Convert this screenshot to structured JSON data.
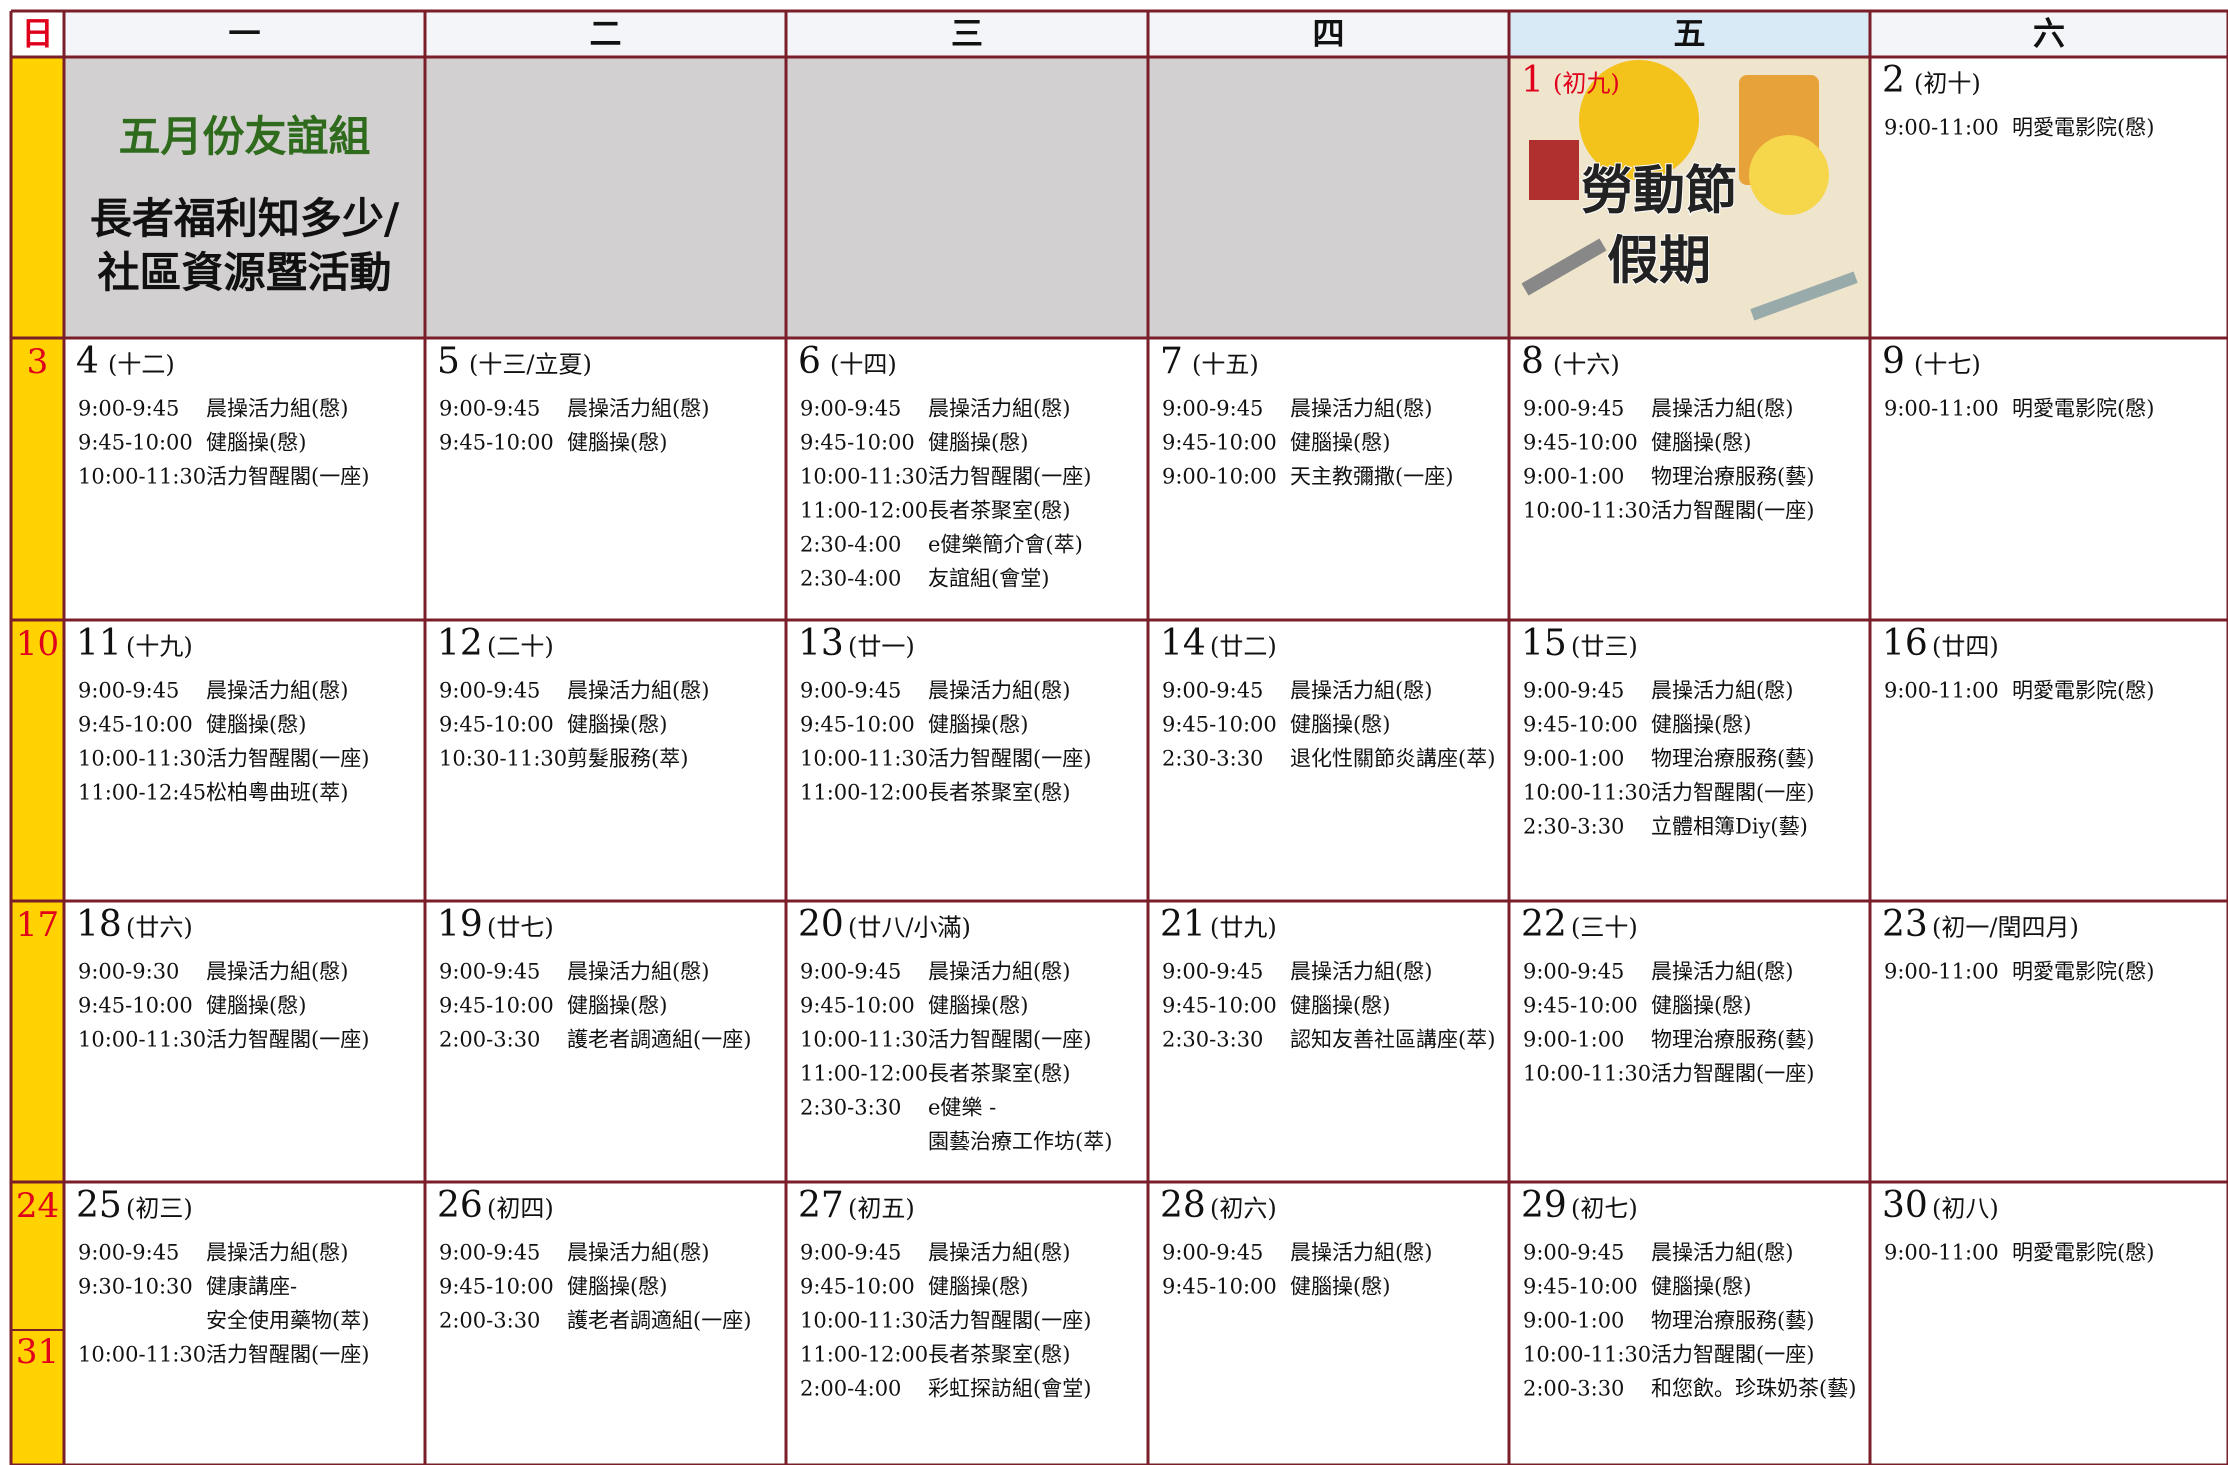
{
  "weekday_headers": [
    "日",
    "一",
    "二",
    "三",
    "四",
    "五",
    "六"
  ],
  "first_row": {
    "banner": {
      "title": "五月份友誼組",
      "lines": [
        "長者福利知多少/",
        "社區資源暨活動"
      ]
    },
    "holiday": {
      "date": "1",
      "lunar": "(初九)",
      "label_lines": [
        "勞動節",
        "假期"
      ]
    },
    "saturday": {
      "date": "2",
      "lunar": "(初十)",
      "events": [
        [
          "9:00-11:00",
          "明愛電影院(慇)"
        ]
      ]
    }
  },
  "weeks": [
    {
      "sunday": [
        "3"
      ],
      "days": [
        {
          "date": "4",
          "lunar": "(十二)",
          "events": [
            [
              "9:00-9:45",
              "晨操活力組(慇)"
            ],
            [
              "9:45-10:00",
              "健腦操(慇)"
            ],
            [
              "10:00-11:30",
              "活力智醒閣(一座)"
            ]
          ]
        },
        {
          "date": "5",
          "lunar": "(十三/立夏)",
          "events": [
            [
              "9:00-9:45",
              "晨操活力組(慇)"
            ],
            [
              "9:45-10:00",
              "健腦操(慇)"
            ]
          ]
        },
        {
          "date": "6",
          "lunar": "(十四)",
          "events": [
            [
              "9:00-9:45",
              "晨操活力組(慇)"
            ],
            [
              "9:45-10:00",
              "健腦操(慇)"
            ],
            [
              "10:00-11:30",
              "活力智醒閣(一座)"
            ],
            [
              "11:00-12:00",
              "長者茶聚室(慇)"
            ],
            [
              "2:30-4:00",
              "e健樂簡介會(萃)"
            ],
            [
              "2:30-4:00",
              "友誼組(會堂)"
            ]
          ]
        },
        {
          "date": "7",
          "lunar": "(十五)",
          "events": [
            [
              "9:00-9:45",
              "晨操活力組(慇)"
            ],
            [
              "9:45-10:00",
              "健腦操(慇)"
            ],
            [
              "9:00-10:00",
              "天主教彌撒(一座)"
            ]
          ]
        },
        {
          "date": "8",
          "lunar": "(十六)",
          "events": [
            [
              "9:00-9:45",
              "晨操活力組(慇)"
            ],
            [
              "9:45-10:00",
              "健腦操(慇)"
            ],
            [
              "9:00-1:00",
              "物理治療服務(藝)"
            ],
            [
              "10:00-11:30",
              "活力智醒閣(一座)"
            ]
          ]
        },
        {
          "date": "9",
          "lunar": "(十七)",
          "events": [
            [
              "9:00-11:00",
              "明愛電影院(慇)"
            ]
          ]
        }
      ]
    },
    {
      "sunday": [
        "10"
      ],
      "days": [
        {
          "date": "11",
          "lunar": "(十九)",
          "events": [
            [
              "9:00-9:45",
              "晨操活力組(慇)"
            ],
            [
              "9:45-10:00",
              "健腦操(慇)"
            ],
            [
              "10:00-11:30",
              "活力智醒閣(一座)"
            ],
            [
              "11:00-12:45",
              "松柏粵曲班(萃)"
            ]
          ]
        },
        {
          "date": "12",
          "lunar": "(二十)",
          "events": [
            [
              "9:00-9:45",
              "晨操活力組(慇)"
            ],
            [
              "9:45-10:00",
              "健腦操(慇)"
            ],
            [
              "10:30-11:30",
              "剪髮服務(萃)"
            ]
          ]
        },
        {
          "date": "13",
          "lunar": "(廿一)",
          "events": [
            [
              "9:00-9:45",
              "晨操活力組(慇)"
            ],
            [
              "9:45-10:00",
              "健腦操(慇)"
            ],
            [
              "10:00-11:30",
              "活力智醒閣(一座)"
            ],
            [
              "11:00-12:00",
              "長者茶聚室(慇)"
            ]
          ]
        },
        {
          "date": "14",
          "lunar": "(廿二)",
          "events": [
            [
              "9:00-9:45",
              "晨操活力組(慇)"
            ],
            [
              "9:45-10:00",
              "健腦操(慇)"
            ],
            [
              "2:30-3:30",
              "退化性關節炎講座(萃)"
            ]
          ]
        },
        {
          "date": "15",
          "lunar": "(廿三)",
          "events": [
            [
              "9:00-9:45",
              "晨操活力組(慇)"
            ],
            [
              "9:45-10:00",
              "健腦操(慇)"
            ],
            [
              "9:00-1:00",
              "物理治療服務(藝)"
            ],
            [
              "10:00-11:30",
              "活力智醒閣(一座)"
            ],
            [
              "2:30-3:30",
              "立體相簿Diy(藝)"
            ]
          ]
        },
        {
          "date": "16",
          "lunar": "(廿四)",
          "events": [
            [
              "9:00-11:00",
              "明愛電影院(慇)"
            ]
          ]
        }
      ]
    },
    {
      "sunday": [
        "17"
      ],
      "days": [
        {
          "date": "18",
          "lunar": "(廿六)",
          "events": [
            [
              "9:00-9:30",
              "晨操活力組(慇)"
            ],
            [
              "9:45-10:00",
              "健腦操(慇)"
            ],
            [
              "10:00-11:30",
              "活力智醒閣(一座)"
            ]
          ]
        },
        {
          "date": "19",
          "lunar": "(廿七)",
          "events": [
            [
              "9:00-9:45",
              "晨操活力組(慇)"
            ],
            [
              "9:45-10:00",
              "健腦操(慇)"
            ],
            [
              "2:00-3:30",
              "護老者調適組(一座)"
            ]
          ]
        },
        {
          "date": "20",
          "lunar": "(廿八/小滿)",
          "events": [
            [
              "9:00-9:45",
              "晨操活力組(慇)"
            ],
            [
              "9:45-10:00",
              "健腦操(慇)"
            ],
            [
              "10:00-11:30",
              "活力智醒閣(一座)"
            ],
            [
              "11:00-12:00",
              "長者茶聚室(慇)"
            ],
            [
              "2:30-3:30",
              "e健樂 -",
              "園藝治療工作坊(萃)"
            ]
          ]
        },
        {
          "date": "21",
          "lunar": "(廿九)",
          "events": [
            [
              "9:00-9:45",
              "晨操活力組(慇)"
            ],
            [
              "9:45-10:00",
              "健腦操(慇)"
            ],
            [
              "2:30-3:30",
              "認知友善社區講座(萃)"
            ]
          ]
        },
        {
          "date": "22",
          "lunar": "(三十)",
          "events": [
            [
              "9:00-9:45",
              "晨操活力組(慇)"
            ],
            [
              "9:45-10:00",
              "健腦操(慇)"
            ],
            [
              "9:00-1:00",
              "物理治療服務(藝)"
            ],
            [
              "10:00-11:30",
              "活力智醒閣(一座)"
            ]
          ]
        },
        {
          "date": "23",
          "lunar": "(初一/閏四月)",
          "events": [
            [
              "9:00-11:00",
              "明愛電影院(慇)"
            ]
          ]
        }
      ]
    },
    {
      "sunday": [
        "24",
        "31"
      ],
      "days": [
        {
          "date": "25",
          "lunar": "(初三)",
          "events": [
            [
              "9:00-9:45",
              "晨操活力組(慇)"
            ],
            [
              "9:30-10:30",
              "健康講座-",
              "安全使用藥物(萃)"
            ],
            [
              "10:00-11:30",
              "活力智醒閣(一座)"
            ]
          ]
        },
        {
          "date": "26",
          "lunar": "(初四)",
          "events": [
            [
              "9:00-9:45",
              "晨操活力組(慇)"
            ],
            [
              "9:45-10:00",
              "健腦操(慇)"
            ],
            [
              "2:00-3:30",
              "護老者調適組(一座)"
            ]
          ]
        },
        {
          "date": "27",
          "lunar": "(初五)",
          "events": [
            [
              "9:00-9:45",
              "晨操活力組(慇)"
            ],
            [
              "9:45-10:00",
              "健腦操(慇)"
            ],
            [
              "10:00-11:30",
              "活力智醒閣(一座)"
            ],
            [
              "11:00-12:00",
              "長者茶聚室(慇)"
            ],
            [
              "2:00-4:00",
              "彩虹探訪組(會堂)"
            ]
          ]
        },
        {
          "date": "28",
          "lunar": "(初六)",
          "events": [
            [
              "9:00-9:45",
              "晨操活力組(慇)"
            ],
            [
              "9:45-10:00",
              "健腦操(慇)"
            ]
          ]
        },
        {
          "date": "29",
          "lunar": "(初七)",
          "events": [
            [
              "9:00-9:45",
              "晨操活力組(慇)"
            ],
            [
              "9:45-10:00",
              "健腦操(慇)"
            ],
            [
              "9:00-1:00",
              "物理治療服務(藝)"
            ],
            [
              "10:00-11:30",
              "活力智醒閣(一座)"
            ],
            [
              "2:00-3:30",
              "和您飲。珍珠奶茶(藝)"
            ]
          ]
        },
        {
          "date": "30",
          "lunar": "(初八)",
          "events": [
            [
              "9:00-11:00",
              "明愛電影院(慇)"
            ]
          ]
        }
      ]
    }
  ]
}
